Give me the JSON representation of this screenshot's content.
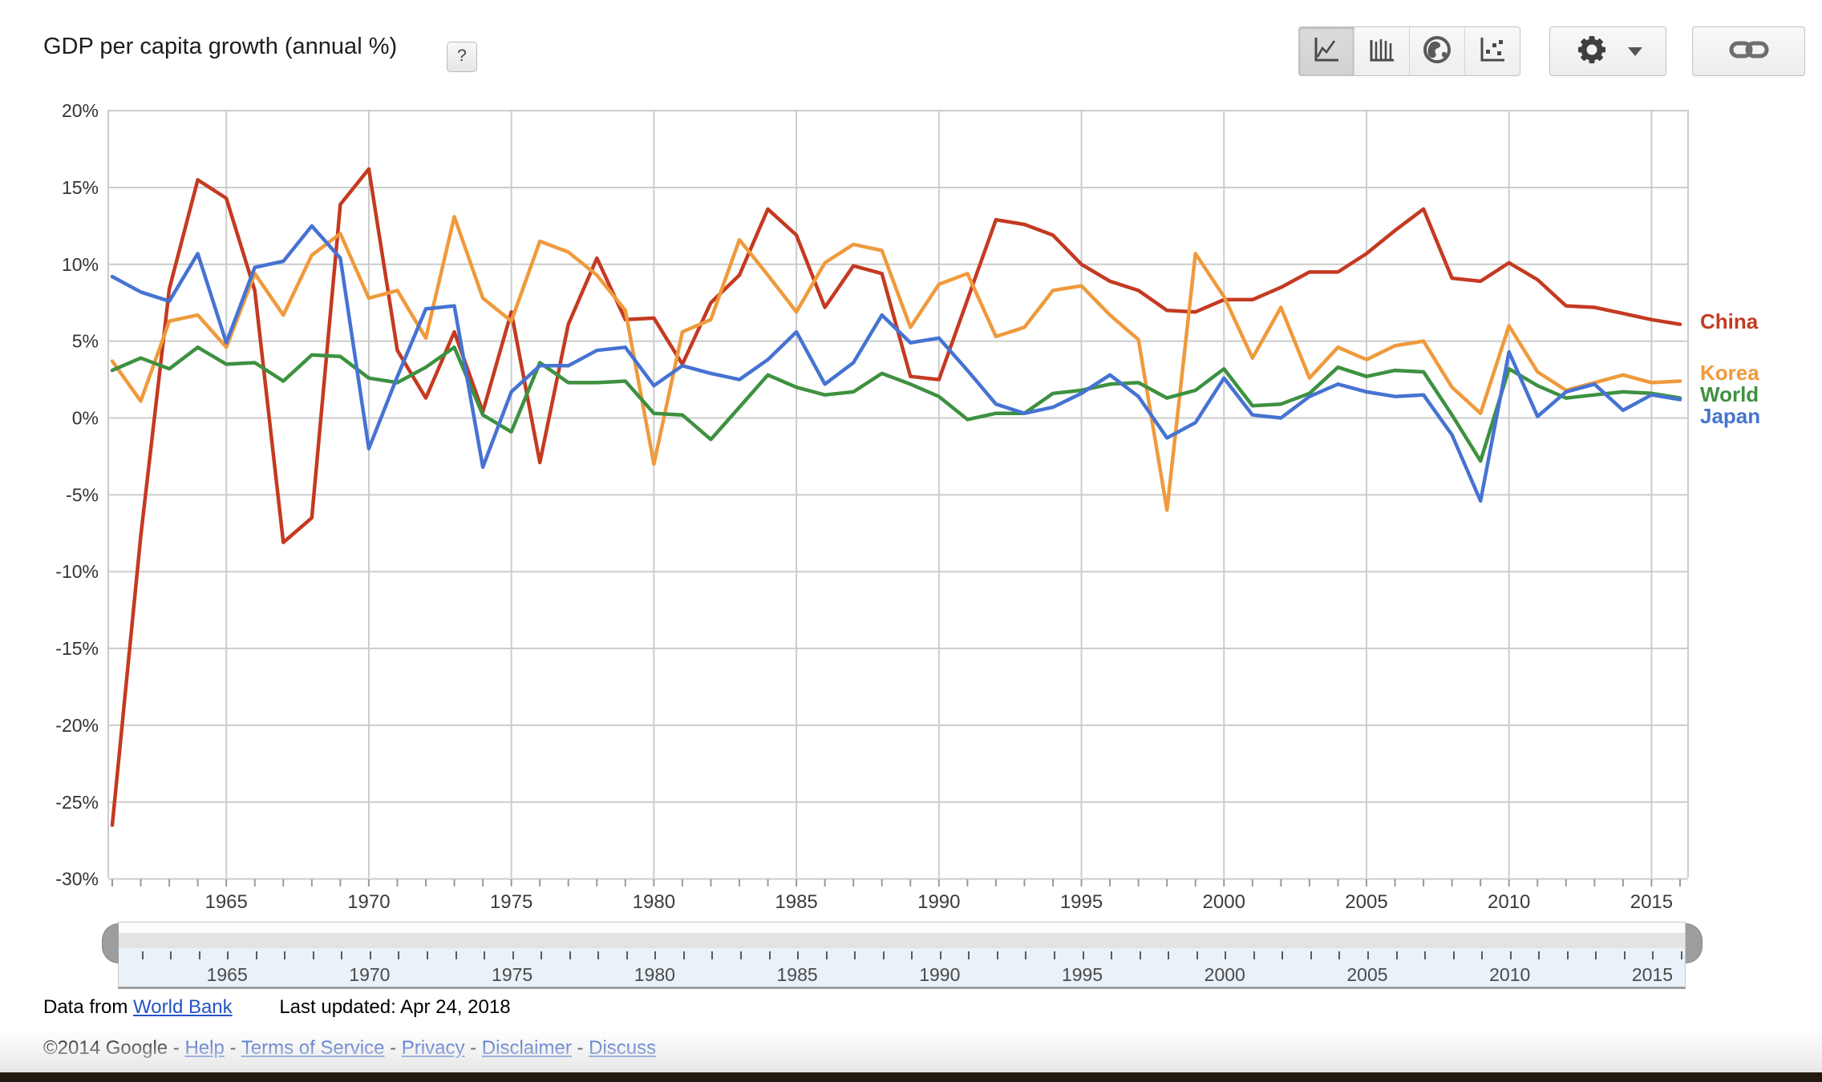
{
  "header": {
    "title": "GDP per capita growth (annual %)",
    "help_label": "?"
  },
  "toolbar": {
    "chart_type_buttons": [
      {
        "icon": "line-chart-icon",
        "selected": true
      },
      {
        "icon": "bar-chart-icon",
        "selected": false
      },
      {
        "icon": "map-globe-icon",
        "selected": false
      },
      {
        "icon": "scatter-chart-icon",
        "selected": false
      }
    ]
  },
  "chart_data": {
    "type": "line",
    "title": "GDP per capita growth (annual %)",
    "x_start_year": 1961,
    "x_end_year": 2016,
    "ylim": [
      -30,
      20
    ],
    "y_ticks": [
      20,
      15,
      10,
      5,
      0,
      -5,
      -10,
      -15,
      -20,
      -25,
      -30
    ],
    "y_tick_suffix": "%",
    "x_tick_years": [
      1965,
      1970,
      1975,
      1980,
      1985,
      1990,
      1995,
      2000,
      2005,
      2010,
      2015
    ],
    "grid": true,
    "legend_position": "right",
    "series": [
      {
        "name": "China",
        "color": "#c43a21",
        "values": [
          -26.5,
          -7.7,
          8.4,
          15.5,
          14.3,
          8.3,
          -8.1,
          -6.5,
          13.9,
          16.2,
          4.4,
          1.3,
          5.6,
          0.4,
          6.9,
          -2.9,
          6.1,
          10.4,
          6.4,
          6.5,
          3.5,
          7.5,
          9.3,
          13.6,
          11.9,
          7.2,
          9.9,
          9.4,
          2.7,
          2.5,
          7.7,
          12.9,
          12.6,
          11.9,
          10.0,
          8.9,
          8.3,
          7.0,
          6.9,
          7.7,
          7.7,
          8.5,
          9.5,
          9.5,
          10.7,
          12.2,
          13.6,
          9.1,
          8.9,
          10.1,
          9.0,
          7.3,
          7.2,
          6.8,
          6.4,
          6.1
        ]
      },
      {
        "name": "Korea",
        "color": "#ef9a3c",
        "values": [
          3.7,
          1.1,
          6.3,
          6.7,
          4.6,
          9.4,
          6.7,
          10.6,
          12.0,
          7.8,
          8.3,
          5.2,
          13.1,
          7.8,
          6.3,
          11.5,
          10.8,
          9.3,
          7.0,
          -3.0,
          5.6,
          6.4,
          11.6,
          9.3,
          6.9,
          10.1,
          11.3,
          10.9,
          5.9,
          8.7,
          9.4,
          5.3,
          5.9,
          8.3,
          8.6,
          6.7,
          5.1,
          -6.0,
          10.7,
          7.9,
          3.9,
          7.2,
          2.6,
          4.6,
          3.8,
          4.7,
          5.0,
          2.0,
          0.3,
          6.0,
          3.0,
          1.8,
          2.3,
          2.8,
          2.3,
          2.4
        ]
      },
      {
        "name": "World",
        "color": "#3d9140",
        "values": [
          3.1,
          3.9,
          3.2,
          4.6,
          3.5,
          3.6,
          2.4,
          4.1,
          4.0,
          2.6,
          2.3,
          3.3,
          4.6,
          0.2,
          -0.9,
          3.6,
          2.3,
          2.3,
          2.4,
          0.3,
          0.2,
          -1.4,
          0.7,
          2.8,
          2.0,
          1.5,
          1.7,
          2.9,
          2.2,
          1.4,
          -0.1,
          0.3,
          0.3,
          1.6,
          1.8,
          2.2,
          2.3,
          1.3,
          1.8,
          3.2,
          0.8,
          0.9,
          1.6,
          3.3,
          2.7,
          3.1,
          3.0,
          0.2,
          -2.8,
          3.2,
          2.1,
          1.3,
          1.5,
          1.7,
          1.6,
          1.3
        ]
      },
      {
        "name": "Japan",
        "color": "#4673d2",
        "values": [
          9.2,
          8.2,
          7.6,
          10.7,
          4.9,
          9.8,
          10.2,
          12.5,
          10.4,
          -2.0,
          2.7,
          7.1,
          7.3,
          -3.2,
          1.7,
          3.4,
          3.4,
          4.4,
          4.6,
          2.1,
          3.4,
          2.9,
          2.5,
          3.8,
          5.6,
          2.2,
          3.6,
          6.7,
          4.9,
          5.2,
          3.1,
          0.9,
          0.3,
          0.7,
          1.6,
          2.8,
          1.4,
          -1.3,
          -0.3,
          2.6,
          0.2,
          0.0,
          1.4,
          2.2,
          1.7,
          1.4,
          1.5,
          -1.1,
          -5.4,
          4.3,
          0.1,
          1.7,
          2.2,
          0.5,
          1.5,
          1.2
        ]
      }
    ]
  },
  "slider": {
    "label_years": [
      1965,
      1970,
      1975,
      1980,
      1985,
      1990,
      1995,
      2000,
      2005,
      2010,
      2015
    ]
  },
  "footer": {
    "data_from": "Data from",
    "source_link": "World Bank",
    "last_updated": "Last updated: Apr 24, 2018",
    "copyright": "©2014 Google",
    "separator": " - ",
    "links": [
      "Help",
      "Terms of Service",
      "Privacy",
      "Disclaimer",
      "Discuss"
    ]
  }
}
